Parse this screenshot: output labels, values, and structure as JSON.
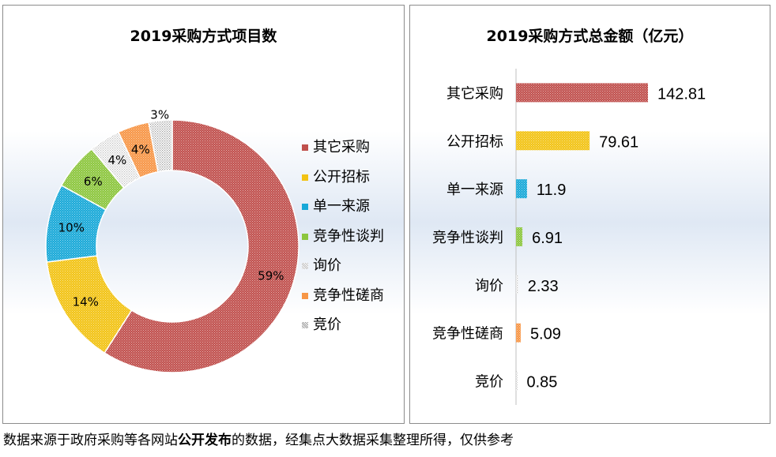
{
  "colors": {
    "其它采购": "#c0504d",
    "公开招标": "#f2c314",
    "单一来源": "#17a8d8",
    "竞争性谈判": "#8cc63e",
    "询价": "#bfbfbf",
    "竞争性磋商": "#f79646",
    "竞价": "#9b9b9b"
  },
  "footer": {
    "part1": "数据来源于政府采购等各网站",
    "part2": "公开发布",
    "part3": "的数据，经集点大数据采集整理所得，仅供参考"
  },
  "chart_data": [
    {
      "type": "pie",
      "title": "2019采购方式项目数",
      "categories": [
        "其它采购",
        "公开招标",
        "单一来源",
        "竞争性谈判",
        "询价",
        "竞争性磋商",
        "竞价"
      ],
      "values": [
        59,
        14,
        10,
        6,
        4,
        4,
        3
      ],
      "labels": [
        "59%",
        "14%",
        "10%",
        "6%",
        "4%",
        "4%",
        "3%"
      ],
      "legend": "right"
    },
    {
      "type": "bar",
      "orientation": "horizontal",
      "title": "2019采购方式总金额（亿元）",
      "categories": [
        "其它采购",
        "公开招标",
        "单一来源",
        "竞争性谈判",
        "询价",
        "竞争性磋商",
        "竞价"
      ],
      "values": [
        142.81,
        79.61,
        11.9,
        6.91,
        2.33,
        5.09,
        0.85
      ],
      "labels": [
        "142.81",
        "79.61",
        "11.9",
        "6.91",
        "2.33",
        "5.09",
        "0.85"
      ]
    }
  ]
}
